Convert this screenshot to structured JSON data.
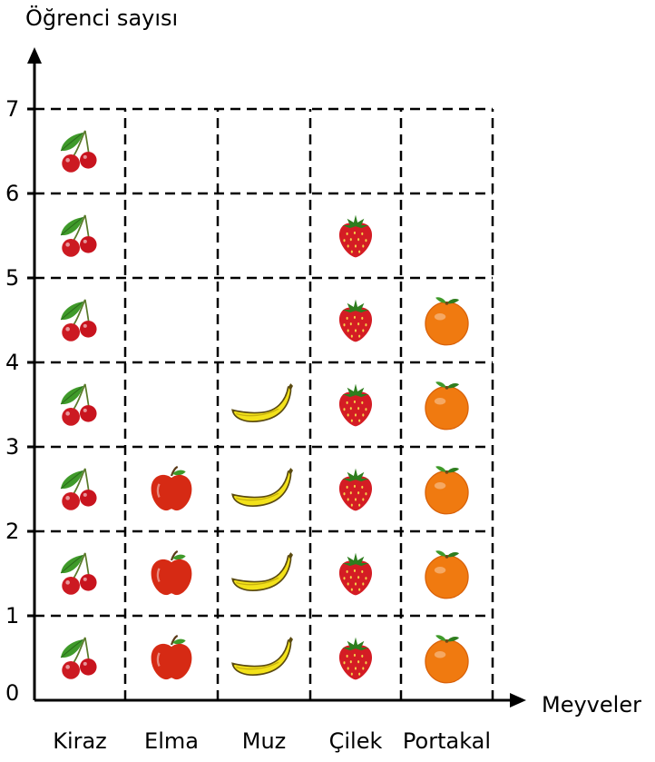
{
  "chart_data": {
    "type": "pictograph",
    "ylabel": "Öğrenci sayısı",
    "xlabel": "Meyveler",
    "categories": [
      "Kiraz",
      "Elma",
      "Muz",
      "Çilek",
      "Portakal"
    ],
    "values": [
      7,
      3,
      4,
      6,
      5
    ],
    "icons": [
      "cherry-icon",
      "apple-icon",
      "banana-icon",
      "strawberry-icon",
      "orange-icon"
    ],
    "y_ticks": [
      "0",
      "1",
      "2",
      "3",
      "4",
      "5",
      "6",
      "7"
    ],
    "ylim": [
      0,
      7
    ],
    "grid": "dashed",
    "colors": {
      "cherry": "#cc1a22",
      "leaf": "#3f9a2a",
      "apple": "#d62a14",
      "banana": "#f3e21a",
      "strawberry": "#d41c24",
      "orange": "#f07a10"
    }
  }
}
